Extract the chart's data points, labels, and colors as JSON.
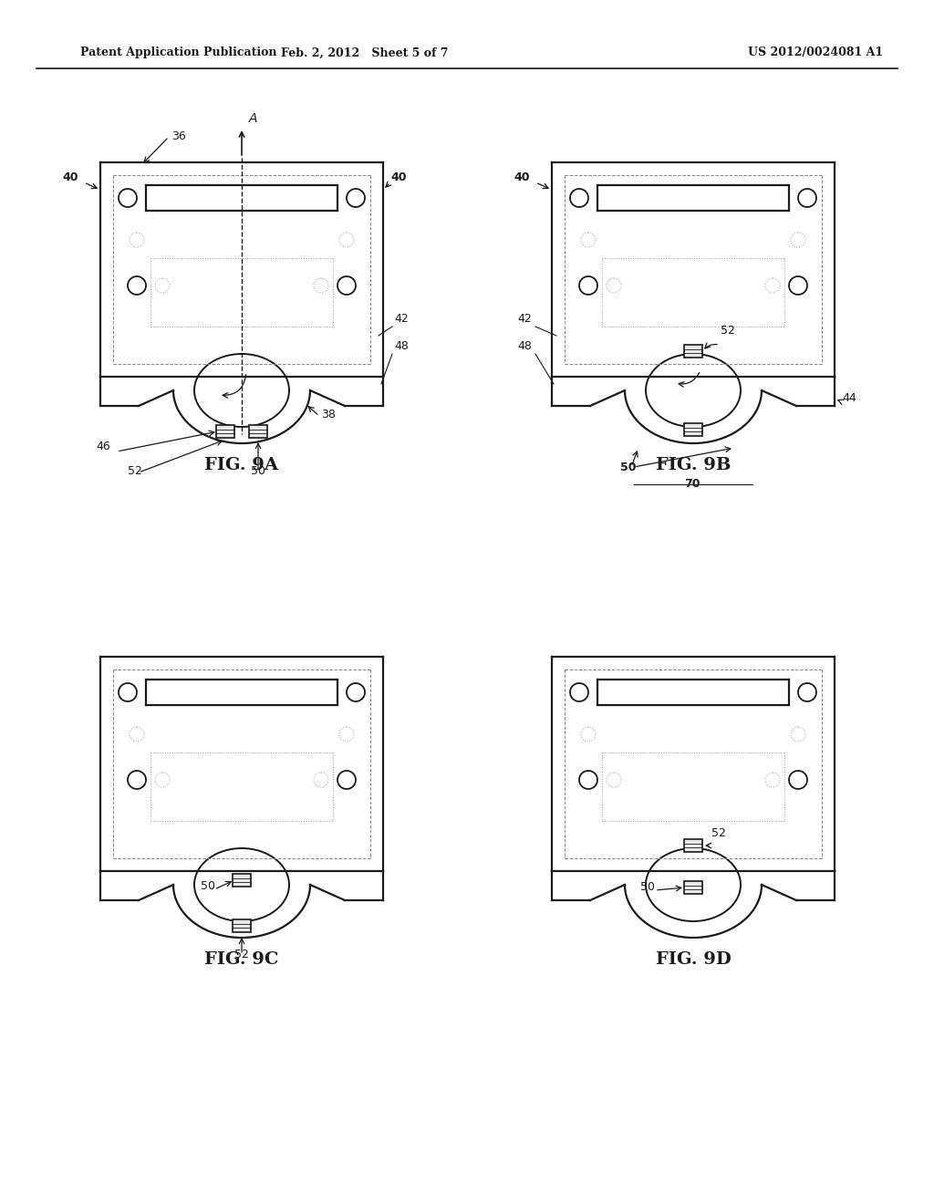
{
  "bg_color": "#ffffff",
  "header_left": "Patent Application Publication",
  "header_mid": "Feb. 2, 2012   Sheet 5 of 7",
  "header_right": "US 2012/0024081 A1",
  "fig_labels": [
    "FIG. 9A",
    "FIG. 9B",
    "FIG. 9C",
    "FIG. 9D"
  ],
  "line_color": "#1a1a1a",
  "dashed_color": "#888888",
  "dotted_color": "#999999"
}
